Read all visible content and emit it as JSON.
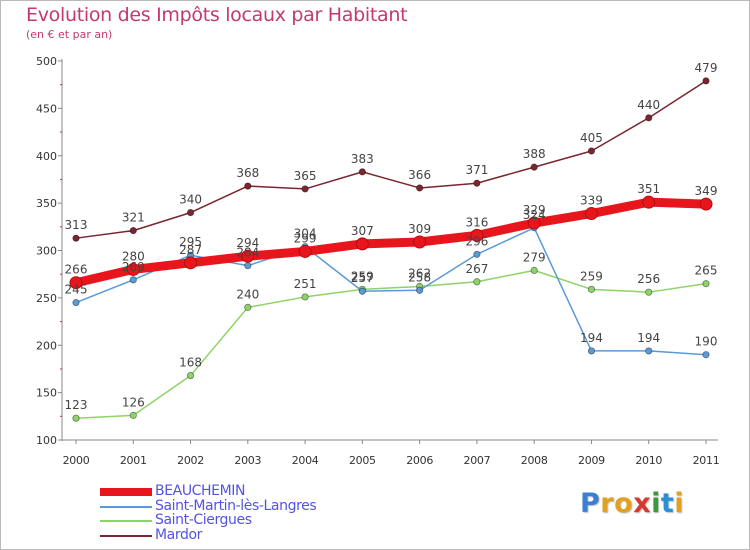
{
  "title": "Evolution des Impôts locaux par Habitant",
  "subtitle": "(en € et par an)",
  "logo": {
    "text": "Proxiti",
    "letter_colors": [
      "#3a7fd4",
      "#e0a020",
      "#e0a020",
      "#d8382e",
      "#3a9a3a",
      "#2a8fd8",
      "#e0a020"
    ]
  },
  "chart_data": {
    "type": "line",
    "x": [
      "2000",
      "2001",
      "2002",
      "2003",
      "2004",
      "2005",
      "2006",
      "2007",
      "2008",
      "2009",
      "2010",
      "2011"
    ],
    "ylim": [
      100,
      500
    ],
    "yticks": [
      100,
      150,
      200,
      250,
      300,
      350,
      400,
      450,
      500
    ],
    "legend_position": "bottom-left",
    "grid": false,
    "series": [
      {
        "name": "Mardor",
        "color": "#7a2530",
        "values": [
          313,
          321,
          340,
          368,
          365,
          383,
          366,
          371,
          388,
          405,
          440,
          479
        ]
      },
      {
        "name": "Saint-Ciergues",
        "color": "#8ed368",
        "values": [
          123,
          126,
          168,
          240,
          251,
          259,
          262,
          267,
          279,
          259,
          256,
          265
        ]
      },
      {
        "name": "Saint-Martin-lès-Langres",
        "color": "#5a9ad6",
        "values": [
          245,
          269,
          295,
          284,
          304,
          257,
          258,
          296,
          324,
          194,
          194,
          190
        ]
      },
      {
        "name": "BEAUCHEMIN",
        "color": "#e8161c",
        "values": [
          266,
          280,
          287,
          294,
          299,
          307,
          309,
          316,
          329,
          339,
          351,
          349
        ]
      }
    ],
    "legend": [
      "BEAUCHEMIN",
      "Saint-Martin-lès-Langres",
      "Saint-Ciergues",
      "Mardor"
    ]
  }
}
